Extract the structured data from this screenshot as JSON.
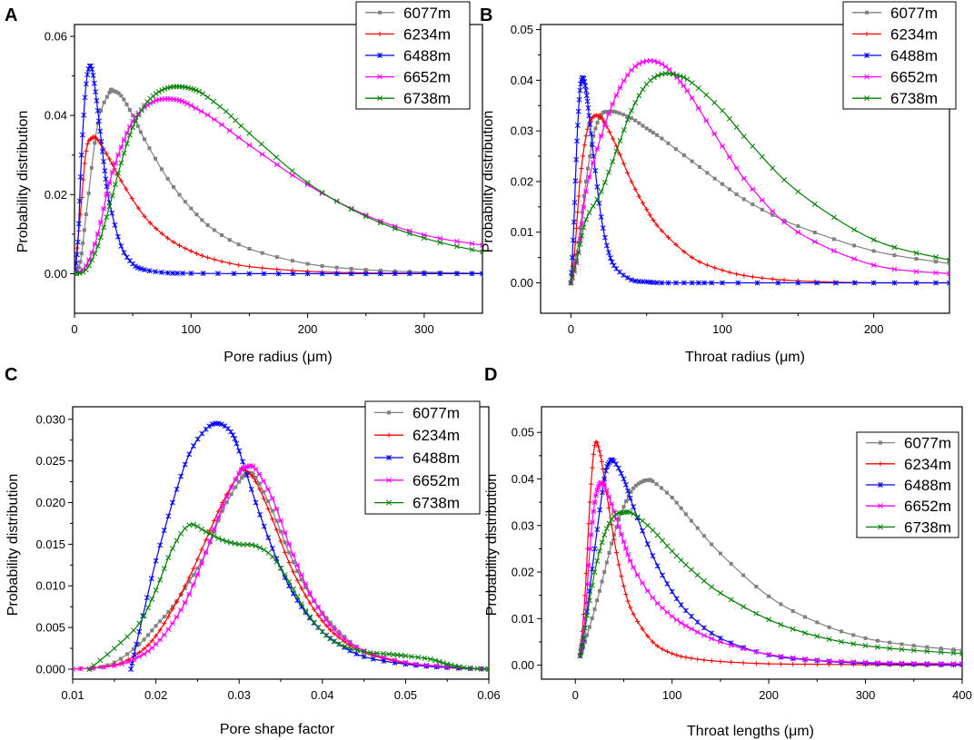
{
  "series_colors": [
    "#808080",
    "#ff0000",
    "#0000ff",
    "#ff00ff",
    "#008000"
  ],
  "chart_data": [
    {
      "panel": "A",
      "type": "line",
      "xlabel": "Pore radius (μm)",
      "ylabel": "Probability distribution",
      "xlim": [
        0,
        350
      ],
      "ylim": [
        -0.01,
        0.063
      ],
      "xticks": [
        0,
        100,
        200,
        300
      ],
      "xtick_labels": [
        "0",
        "100",
        "200",
        "300"
      ],
      "yticks": [
        0.0,
        0.02,
        0.04,
        0.06
      ],
      "ytick_labels": [
        "0.00",
        "0.02",
        "0.04",
        "0.06"
      ],
      "legend_position": "top-right",
      "series": [
        {
          "name": "6077m",
          "x": [
            0,
            5,
            10,
            20,
            30,
            33,
            40,
            50,
            60,
            80,
            100,
            120,
            150,
            200,
            250,
            300,
            350
          ],
          "y": [
            0,
            0.003,
            0.015,
            0.038,
            0.0458,
            0.0462,
            0.045,
            0.04,
            0.034,
            0.024,
            0.0165,
            0.011,
            0.0063,
            0.0025,
            0.001,
            0.0004,
            0.0001
          ]
        },
        {
          "name": "6234m",
          "x": [
            0,
            5,
            10,
            15,
            20,
            30,
            40,
            60,
            80,
            100,
            120,
            150,
            200,
            250,
            300,
            350
          ],
          "y": [
            0,
            0.015,
            0.031,
            0.0343,
            0.0338,
            0.029,
            0.0235,
            0.0145,
            0.009,
            0.0057,
            0.0036,
            0.0018,
            0.0006,
            0.0002,
            0.0001,
            0
          ],
          "markers": true
        },
        {
          "name": "6488m",
          "x": [
            0,
            3,
            6,
            10,
            14,
            18,
            22,
            26,
            30,
            40,
            50,
            60,
            80,
            100,
            150,
            200,
            250,
            300,
            350
          ],
          "y": [
            0,
            0.008,
            0.03,
            0.048,
            0.0525,
            0.046,
            0.036,
            0.026,
            0.018,
            0.007,
            0.0025,
            0.001,
            0.0002,
            0.0001,
            0,
            0,
            0,
            0,
            0
          ]
        },
        {
          "name": "6652m",
          "x": [
            0,
            10,
            20,
            30,
            40,
            50,
            60,
            70,
            80,
            90,
            100,
            120,
            150,
            200,
            250,
            300,
            350
          ],
          "y": [
            0,
            0.002,
            0.01,
            0.023,
            0.032,
            0.0385,
            0.042,
            0.0438,
            0.0442,
            0.0438,
            0.0425,
            0.039,
            0.0325,
            0.0225,
            0.0148,
            0.0098,
            0.0072
          ]
        },
        {
          "name": "6738m",
          "x": [
            0,
            10,
            20,
            30,
            40,
            50,
            60,
            70,
            80,
            90,
            100,
            110,
            130,
            150,
            200,
            250,
            300,
            350
          ],
          "y": [
            0,
            0.001,
            0.007,
            0.017,
            0.028,
            0.037,
            0.0425,
            0.0455,
            0.047,
            0.0473,
            0.0468,
            0.0455,
            0.041,
            0.0355,
            0.023,
            0.0145,
            0.009,
            0.0055
          ]
        }
      ]
    },
    {
      "panel": "B",
      "type": "line",
      "xlabel": "Throat radius (μm)",
      "ylabel": "Probability distribution",
      "xlim": [
        -20,
        250
      ],
      "ylim": [
        -0.006,
        0.051
      ],
      "xticks": [
        0,
        100,
        200
      ],
      "xtick_labels": [
        "0",
        "100",
        "200"
      ],
      "yticks": [
        0.0,
        0.01,
        0.02,
        0.03,
        0.04,
        0.05
      ],
      "ytick_labels": [
        "0.00",
        "0.01",
        "0.02",
        "0.03",
        "0.04",
        "0.05"
      ],
      "legend_position": "top-right",
      "series": [
        {
          "name": "6077m",
          "x": [
            0,
            5,
            10,
            15,
            20,
            25,
            30,
            40,
            50,
            60,
            80,
            100,
            120,
            150,
            200,
            250
          ],
          "y": [
            0,
            0.008,
            0.02,
            0.029,
            0.0332,
            0.0338,
            0.0337,
            0.0325,
            0.0305,
            0.0285,
            0.024,
            0.0195,
            0.0155,
            0.0112,
            0.0063,
            0.0038
          ]
        },
        {
          "name": "6234m",
          "x": [
            0,
            3,
            6,
            10,
            14,
            18,
            22,
            30,
            40,
            50,
            60,
            80,
            100,
            120,
            150,
            200,
            250
          ],
          "y": [
            0,
            0.008,
            0.02,
            0.029,
            0.0325,
            0.033,
            0.0318,
            0.027,
            0.02,
            0.0145,
            0.0103,
            0.005,
            0.0025,
            0.0012,
            0.0004,
            0,
            0
          ]
        },
        {
          "name": "6488m",
          "x": [
            0,
            2,
            4,
            6,
            8,
            10,
            12,
            15,
            20,
            25,
            30,
            40,
            50,
            60,
            80,
            100,
            150,
            200,
            250
          ],
          "y": [
            0,
            0.012,
            0.028,
            0.038,
            0.0405,
            0.038,
            0.033,
            0.025,
            0.013,
            0.006,
            0.0028,
            0.0006,
            0.0002,
            0,
            0,
            0,
            0,
            0,
            0
          ]
        },
        {
          "name": "6652m",
          "x": [
            0,
            5,
            10,
            20,
            30,
            40,
            50,
            60,
            70,
            80,
            100,
            120,
            150,
            200,
            250
          ],
          "y": [
            0,
            0.006,
            0.018,
            0.029,
            0.037,
            0.042,
            0.0438,
            0.0432,
            0.0405,
            0.0365,
            0.027,
            0.0185,
            0.01,
            0.0035,
            0.0018
          ]
        },
        {
          "name": "6738m",
          "x": [
            0,
            5,
            10,
            20,
            30,
            40,
            50,
            60,
            70,
            80,
            100,
            120,
            150,
            200,
            250
          ],
          "y": [
            0,
            0.006,
            0.0125,
            0.018,
            0.026,
            0.034,
            0.0392,
            0.0412,
            0.041,
            0.0395,
            0.034,
            0.027,
            0.018,
            0.0085,
            0.0045
          ]
        }
      ]
    },
    {
      "panel": "C",
      "type": "line",
      "xlabel": "Pore shape factor",
      "ylabel": "Probability distribution",
      "xlim": [
        0.01,
        0.06
      ],
      "ylim": [
        -0.0012,
        0.0315
      ],
      "xticks": [
        0.01,
        0.02,
        0.03,
        0.04,
        0.05,
        0.06
      ],
      "xtick_labels": [
        "0.01",
        "0.02",
        "0.03",
        "0.04",
        "0.05",
        "0.06"
      ],
      "yticks": [
        0.0,
        0.005,
        0.01,
        0.015,
        0.02,
        0.025,
        0.03
      ],
      "ytick_labels": [
        "0.000",
        "0.005",
        "0.010",
        "0.015",
        "0.020",
        "0.025",
        "0.030"
      ],
      "legend_position": "top-right",
      "series": [
        {
          "name": "6077m",
          "x": [
            0.012,
            0.015,
            0.018,
            0.02,
            0.022,
            0.024,
            0.026,
            0.028,
            0.03,
            0.031,
            0.032,
            0.034,
            0.036,
            0.038,
            0.04,
            0.042,
            0.045,
            0.05,
            0.055,
            0.06
          ],
          "y": [
            0,
            0.0008,
            0.003,
            0.0052,
            0.0075,
            0.0105,
            0.014,
            0.019,
            0.0225,
            0.0235,
            0.023,
            0.019,
            0.014,
            0.0098,
            0.0068,
            0.0045,
            0.0022,
            0.0008,
            0.0002,
            0
          ]
        },
        {
          "name": "6234m",
          "x": [
            0.01,
            0.015,
            0.018,
            0.02,
            0.022,
            0.024,
            0.026,
            0.028,
            0.03,
            0.0305,
            0.032,
            0.034,
            0.036,
            0.038,
            0.04,
            0.042,
            0.045,
            0.05,
            0.055,
            0.06
          ],
          "y": [
            0,
            0.0005,
            0.002,
            0.004,
            0.0072,
            0.011,
            0.0155,
            0.02,
            0.0235,
            0.024,
            0.0225,
            0.018,
            0.0128,
            0.0088,
            0.0058,
            0.0038,
            0.002,
            0.0007,
            0.0002,
            0
          ]
        },
        {
          "name": "6488m",
          "x": [
            0.017,
            0.018,
            0.02,
            0.022,
            0.024,
            0.026,
            0.0275,
            0.029,
            0.03,
            0.032,
            0.034,
            0.036,
            0.038,
            0.04,
            0.042,
            0.045,
            0.05,
            0.055,
            0.06
          ],
          "y": [
            0,
            0.0045,
            0.013,
            0.02,
            0.0258,
            0.0288,
            0.0295,
            0.0285,
            0.0262,
            0.02,
            0.0145,
            0.01,
            0.0068,
            0.0045,
            0.003,
            0.0015,
            0.0006,
            0.0002,
            0
          ]
        },
        {
          "name": "6652m",
          "x": [
            0.01,
            0.015,
            0.018,
            0.02,
            0.022,
            0.024,
            0.026,
            0.028,
            0.03,
            0.031,
            0.032,
            0.034,
            0.036,
            0.038,
            0.04,
            0.042,
            0.045,
            0.05,
            0.055,
            0.06
          ],
          "y": [
            0,
            0.0004,
            0.0015,
            0.003,
            0.0055,
            0.009,
            0.014,
            0.0195,
            0.0235,
            0.0243,
            0.024,
            0.0205,
            0.015,
            0.0102,
            0.0066,
            0.0042,
            0.0022,
            0.0008,
            0.0003,
            0
          ]
        },
        {
          "name": "6738m",
          "x": [
            0.012,
            0.015,
            0.018,
            0.02,
            0.022,
            0.024,
            0.026,
            0.028,
            0.03,
            0.032,
            0.034,
            0.036,
            0.038,
            0.04,
            0.042,
            0.045,
            0.048,
            0.05,
            0.053,
            0.055,
            0.057,
            0.06
          ],
          "y": [
            0,
            0.0025,
            0.0055,
            0.0095,
            0.0145,
            0.0173,
            0.0165,
            0.0155,
            0.015,
            0.0148,
            0.0135,
            0.0105,
            0.007,
            0.0045,
            0.003,
            0.0021,
            0.0018,
            0.0016,
            0.0012,
            0.0006,
            0.0002,
            0
          ]
        }
      ]
    },
    {
      "panel": "D",
      "type": "line",
      "xlabel": "Throat lengths (μm)",
      "ylabel": "Probability distribution",
      "xlim": [
        -35,
        400
      ],
      "ylim": [
        -0.003,
        0.0555
      ],
      "xticks": [
        0,
        100,
        200,
        300,
        400
      ],
      "xtick_labels": [
        "0",
        "100",
        "200",
        "300",
        "400"
      ],
      "yticks": [
        0.0,
        0.01,
        0.02,
        0.03,
        0.04,
        0.05
      ],
      "ytick_labels": [
        "0.00",
        "0.01",
        "0.02",
        "0.03",
        "0.04",
        "0.05"
      ],
      "legend_position": "top-right",
      "series": [
        {
          "name": "6077m",
          "x": [
            5,
            10,
            20,
            30,
            40,
            50,
            60,
            70,
            75,
            80,
            100,
            120,
            150,
            200,
            250,
            300,
            350,
            400
          ],
          "y": [
            0.002,
            0.005,
            0.012,
            0.02,
            0.028,
            0.034,
            0.038,
            0.0395,
            0.0397,
            0.0395,
            0.036,
            0.031,
            0.024,
            0.0148,
            0.0092,
            0.0058,
            0.0042,
            0.0032
          ]
        },
        {
          "name": "6234m",
          "x": [
            5,
            10,
            15,
            20,
            25,
            30,
            40,
            50,
            60,
            80,
            100,
            120,
            150,
            200,
            250,
            300,
            350,
            400
          ],
          "y": [
            0.002,
            0.015,
            0.035,
            0.0472,
            0.046,
            0.04,
            0.027,
            0.017,
            0.011,
            0.005,
            0.0025,
            0.0015,
            0.0008,
            0.0003,
            0.0002,
            0.0001,
            0,
            0
          ]
        },
        {
          "name": "6488m",
          "x": [
            5,
            10,
            20,
            30,
            35,
            40,
            50,
            60,
            80,
            100,
            120,
            150,
            200,
            250,
            300,
            350,
            400
          ],
          "y": [
            0.002,
            0.008,
            0.025,
            0.04,
            0.0435,
            0.0438,
            0.04,
            0.034,
            0.0235,
            0.0158,
            0.0105,
            0.0058,
            0.0022,
            0.001,
            0.0004,
            0.0002,
            0.0001
          ]
        },
        {
          "name": "6652m",
          "x": [
            5,
            10,
            15,
            20,
            25,
            30,
            40,
            50,
            60,
            80,
            100,
            120,
            150,
            200,
            250,
            300,
            350,
            400
          ],
          "y": [
            0.002,
            0.01,
            0.025,
            0.035,
            0.0388,
            0.0385,
            0.033,
            0.0265,
            0.021,
            0.0145,
            0.0105,
            0.0078,
            0.005,
            0.0023,
            0.0011,
            0.0006,
            0.0004,
            0.0003
          ]
        },
        {
          "name": "6738m",
          "x": [
            5,
            10,
            20,
            30,
            40,
            50,
            60,
            80,
            100,
            120,
            150,
            200,
            250,
            300,
            350,
            400
          ],
          "y": [
            0.002,
            0.008,
            0.02,
            0.028,
            0.032,
            0.0328,
            0.0325,
            0.029,
            0.0245,
            0.0205,
            0.0155,
            0.0098,
            0.0062,
            0.0042,
            0.0032,
            0.0025
          ]
        }
      ]
    }
  ],
  "panel_labels": [
    "A",
    "B",
    "C",
    "D"
  ]
}
